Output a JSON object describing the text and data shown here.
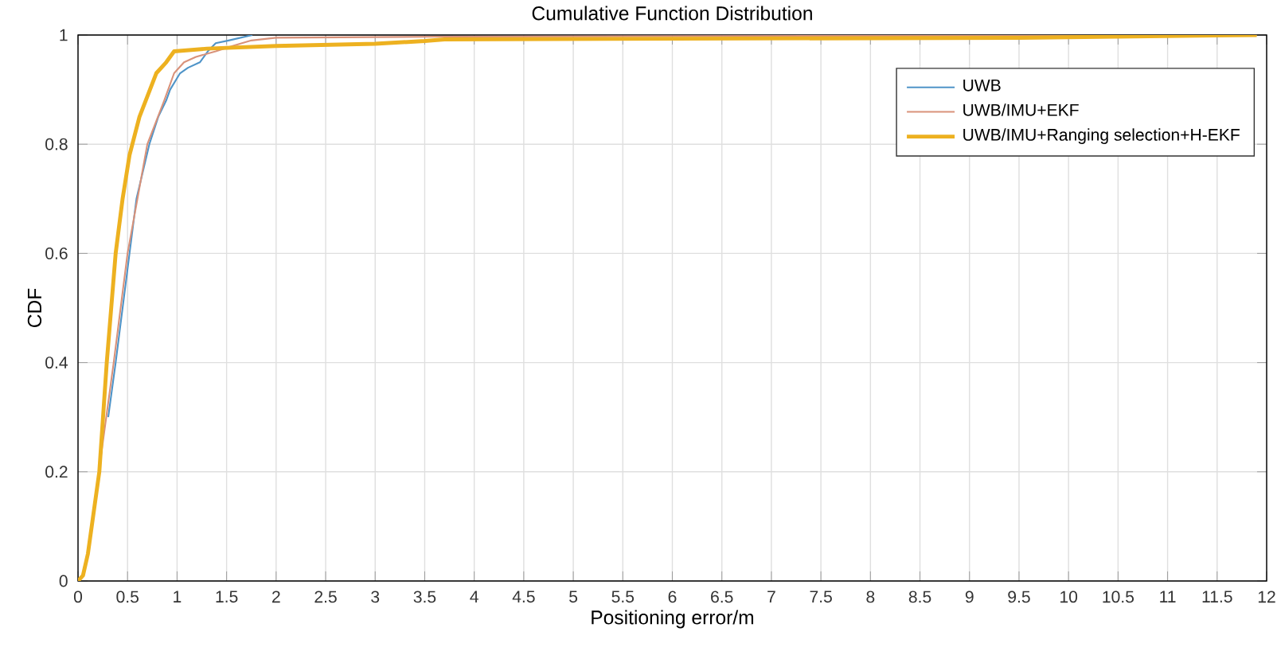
{
  "chart_data": {
    "type": "line",
    "title": "Cumulative Function Distribution",
    "xlabel": "Positioning error/m",
    "ylabel": "CDF",
    "xlim": [
      0,
      12
    ],
    "ylim": [
      0,
      1
    ],
    "xticks": [
      0,
      0.5,
      1,
      1.5,
      2,
      2.5,
      3,
      3.5,
      4,
      4.5,
      5,
      5.5,
      6,
      6.5,
      7,
      7.5,
      8,
      8.5,
      9,
      9.5,
      10,
      10.5,
      11,
      11.5,
      12
    ],
    "yticks": [
      0,
      0.2,
      0.4,
      0.6,
      0.8,
      1
    ],
    "grid": true,
    "legend": "top right",
    "marker": "none",
    "series": [
      {
        "name": "UWB",
        "color": "#4f94c8",
        "x": [
          0.305,
          0.38,
          0.52,
          0.59,
          0.72,
          0.81,
          0.89,
          0.93,
          1.03,
          1.11,
          1.23,
          1.31,
          1.39,
          1.52,
          1.76
        ],
        "values": [
          0.3,
          0.4,
          0.6,
          0.7,
          0.8,
          0.85,
          0.88,
          0.9,
          0.93,
          0.94,
          0.95,
          0.97,
          0.985,
          0.99,
          1
        ]
      },
      {
        "name": "UWB/IMU+EKF",
        "color": "#d9927a",
        "x": [
          0,
          0.05,
          0.1,
          0.21,
          0.36,
          0.5,
          0.7,
          0.87,
          0.97,
          1.07,
          1.19,
          1.39,
          1.56,
          1.75,
          2.0,
          3.7,
          11.9
        ],
        "values": [
          0,
          0.01,
          0.05,
          0.2,
          0.4,
          0.6,
          0.8,
          0.88,
          0.93,
          0.95,
          0.96,
          0.97,
          0.98,
          0.99,
          0.995,
          0.997,
          1
        ]
      },
      {
        "name": "UWB/IMU+Ranging selection+H-EKF",
        "color": "#edb120",
        "x": [
          0,
          0.05,
          0.1,
          0.215,
          0.29,
          0.38,
          0.45,
          0.52,
          0.62,
          0.79,
          0.89,
          0.97,
          1.3,
          2.0,
          3.0,
          3.5,
          3.7,
          9.5,
          11.9
        ],
        "values": [
          0,
          0.01,
          0.05,
          0.2,
          0.4,
          0.6,
          0.7,
          0.78,
          0.85,
          0.93,
          0.95,
          0.97,
          0.975,
          0.98,
          0.984,
          0.989,
          0.992,
          0.995,
          1
        ]
      }
    ]
  }
}
